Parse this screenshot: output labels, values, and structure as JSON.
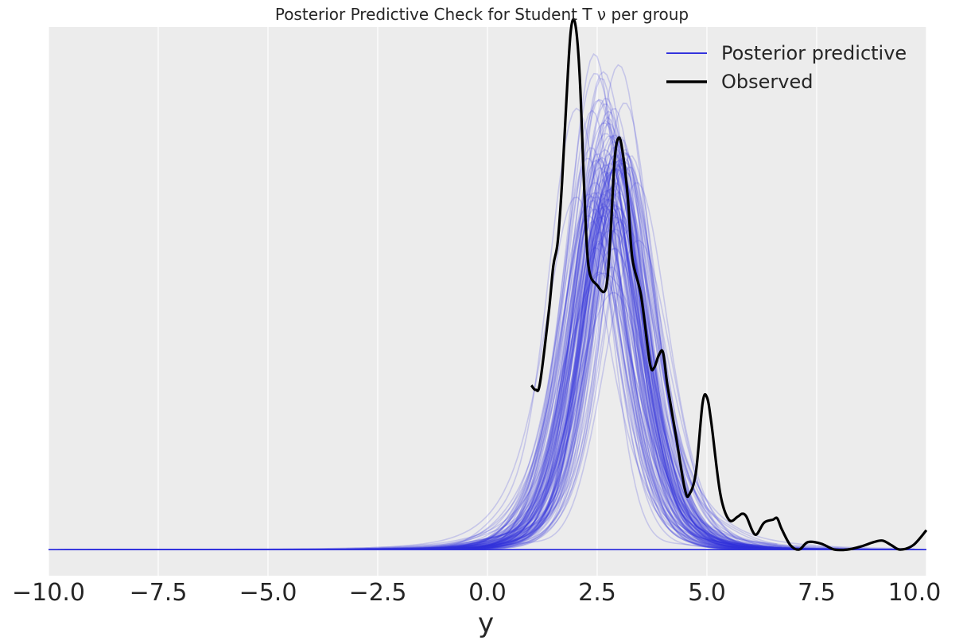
{
  "chart_data": {
    "type": "line",
    "title": "Posterior Predictive Check for Student T ν per group",
    "xlabel": "y",
    "ylabel": "",
    "xlim": [
      -10.0,
      10.0
    ],
    "ylim": [
      -0.0175,
      0.35
    ],
    "xticks": [
      -10.0,
      -7.5,
      -5.0,
      -2.5,
      0.0,
      2.5,
      5.0,
      7.5,
      10.0
    ],
    "xtick_labels": [
      "−10.0",
      "−7.5",
      "−5.0",
      "−2.5",
      "0.0",
      "2.5",
      "5.0",
      "7.5",
      "10.0"
    ],
    "yticks_shown": false,
    "grid": "vertical",
    "background": "#ececec",
    "legend_position": "top-right",
    "legend": [
      {
        "label": "Posterior predictive",
        "color": "#3333dd"
      },
      {
        "label": "Observed",
        "color": "#000000"
      }
    ],
    "posterior_predictive": {
      "name": "Posterior predictive",
      "color": "#3333dd",
      "n_draws": 120,
      "summary_mean_curve": {
        "x": [
          -10.0,
          -5.0,
          -2.0,
          -1.0,
          0.0,
          0.5,
          1.0,
          1.5,
          2.0,
          2.5,
          3.0,
          3.5,
          4.0,
          4.5,
          5.0,
          5.5,
          6.0,
          7.0,
          8.0,
          10.0
        ],
        "y": [
          0.0,
          0.0008,
          0.003,
          0.007,
          0.026,
          0.052,
          0.097,
          0.16,
          0.22,
          0.253,
          0.248,
          0.205,
          0.145,
          0.09,
          0.05,
          0.026,
          0.013,
          0.004,
          0.0015,
          0.0004
        ]
      }
    },
    "observed": {
      "name": "Observed",
      "color": "#000000",
      "x": [
        1.0,
        1.1,
        1.2,
        1.4,
        1.5,
        1.6,
        1.7,
        1.8,
        1.9,
        2.0,
        2.1,
        2.2,
        2.3,
        2.5,
        2.7,
        2.8,
        2.9,
        3.0,
        3.1,
        3.2,
        3.3,
        3.5,
        3.7,
        3.8,
        3.9,
        4.0,
        4.1,
        4.3,
        4.5,
        4.6,
        4.75,
        4.9,
        5.0,
        5.1,
        5.3,
        5.5,
        5.7,
        5.8,
        5.9,
        6.1,
        6.3,
        6.5,
        6.6,
        6.7,
        6.9,
        7.1,
        7.3,
        7.6,
        7.9,
        8.2,
        8.5,
        8.8,
        9.0,
        9.2,
        9.4,
        9.7,
        10.0
      ],
      "y": [
        0.11,
        0.107,
        0.112,
        0.16,
        0.19,
        0.206,
        0.246,
        0.302,
        0.348,
        0.352,
        0.318,
        0.245,
        0.19,
        0.177,
        0.175,
        0.21,
        0.262,
        0.276,
        0.262,
        0.235,
        0.195,
        0.17,
        0.125,
        0.122,
        0.13,
        0.132,
        0.11,
        0.075,
        0.04,
        0.037,
        0.052,
        0.098,
        0.102,
        0.085,
        0.038,
        0.02,
        0.022,
        0.024,
        0.022,
        0.01,
        0.018,
        0.02,
        0.021,
        0.014,
        0.003,
        0.0,
        0.005,
        0.004,
        0.0,
        0.0,
        0.002,
        0.005,
        0.006,
        0.003,
        0.0,
        0.003,
        0.013
      ]
    }
  }
}
